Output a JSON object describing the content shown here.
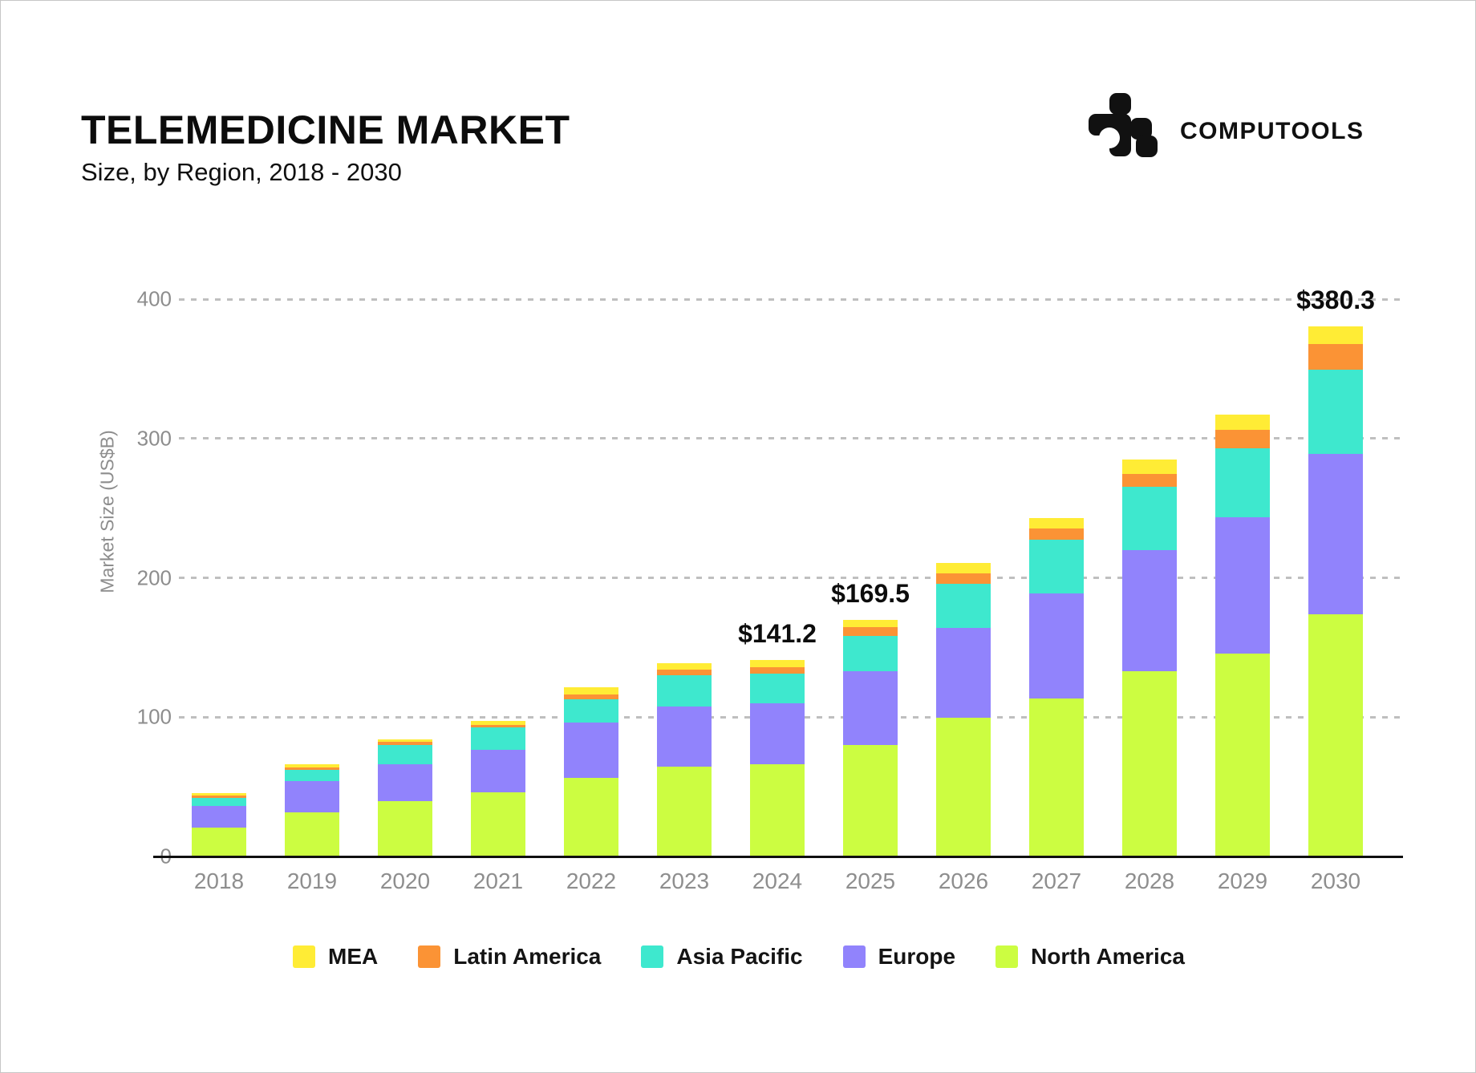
{
  "header": {
    "title": "TELEMEDICINE MARKET",
    "subtitle": "Size, by Region, 2018 - 2030",
    "brand": "COMPUTOOLS"
  },
  "chart_data": {
    "type": "bar",
    "stacked": true,
    "title": "TELEMEDICINE MARKET",
    "subtitle": "Size, by Region, 2018 - 2030",
    "xlabel": "",
    "ylabel": "Market Size (US$B)",
    "ylim": [
      0,
      400
    ],
    "yticks": [
      0,
      100,
      200,
      300,
      400
    ],
    "grid": "horizontal-dashed",
    "legend_position": "bottom",
    "categories": [
      "2018",
      "2019",
      "2020",
      "2021",
      "2022",
      "2023",
      "2024",
      "2025",
      "2026",
      "2027",
      "2028",
      "2029",
      "2030"
    ],
    "series": [
      {
        "name": "North America",
        "color": "#CCFD41",
        "values": [
          20.7,
          31.9,
          39.6,
          45.8,
          56.5,
          64.5,
          66.1,
          80.2,
          99.3,
          113.4,
          133.1,
          145.7,
          173.7
        ]
      },
      {
        "name": "Europe",
        "color": "#9183FC",
        "values": [
          15.5,
          22.0,
          26.5,
          30.9,
          39.6,
          42.9,
          43.8,
          53.0,
          64.9,
          75.4,
          87.0,
          97.6,
          115.0
        ]
      },
      {
        "name": "Asia Pacific",
        "color": "#3EE8CE",
        "values": [
          5.8,
          8.5,
          13.9,
          15.7,
          16.5,
          22.6,
          21.3,
          24.8,
          31.3,
          38.6,
          45.4,
          49.9,
          60.7
        ]
      },
      {
        "name": "Latin America",
        "color": "#FB9335",
        "values": [
          1.7,
          1.6,
          2.3,
          1.9,
          3.7,
          3.9,
          4.9,
          6.4,
          7.7,
          8.0,
          9.3,
          12.9,
          18.2
        ]
      },
      {
        "name": "MEA",
        "color": "#FFEC35",
        "values": [
          1.7,
          1.9,
          1.7,
          3.2,
          5.0,
          5.0,
          5.1,
          5.1,
          7.4,
          7.5,
          10.2,
          11.2,
          12.7
        ]
      }
    ],
    "totals": [
      45.4,
      65.9,
      84.0,
      97.5,
      121.3,
      138.9,
      141.2,
      169.5,
      210.6,
      242.9,
      285.0,
      317.3,
      380.3
    ],
    "annotations": [
      {
        "category": "2024",
        "text": "$141.2"
      },
      {
        "category": "2025",
        "text": "$169.5"
      },
      {
        "category": "2030",
        "text": "$380.3"
      }
    ],
    "legend_order": [
      "MEA",
      "Latin America",
      "Asia Pacific",
      "Europe",
      "North America"
    ]
  }
}
